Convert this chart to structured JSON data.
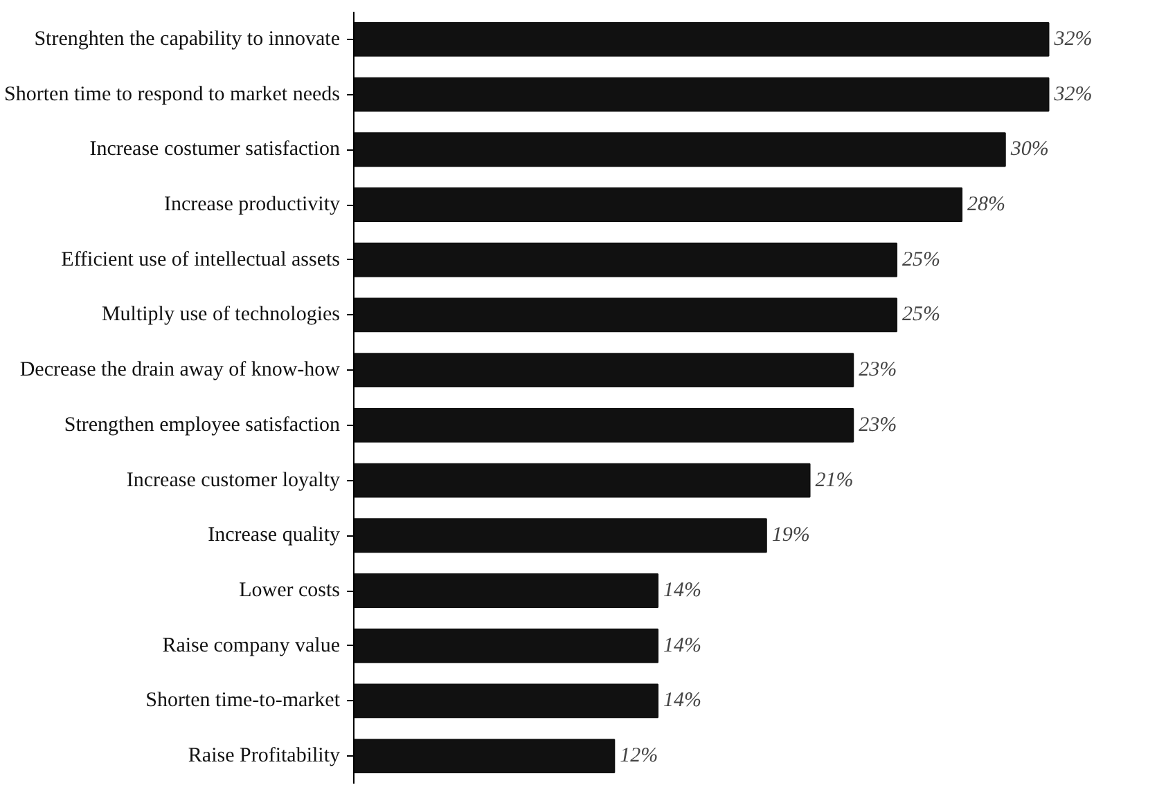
{
  "chart_data": {
    "type": "bar",
    "orientation": "horizontal",
    "categories": [
      "Strenghten the capability to innovate",
      "Shorten time to respond to market needs",
      "Increase costumer satisfaction",
      "Increase productivity",
      "Efficient use of intellectual assets",
      "Multiply use of technologies",
      "Decrease the drain away of know-how",
      "Strengthen employee satisfaction",
      "Increase customer loyalty",
      "Increase quality",
      "Lower costs",
      "Raise company value",
      "Shorten time-to-market",
      "Raise Profitability"
    ],
    "values": [
      32,
      32,
      30,
      28,
      25,
      25,
      23,
      23,
      21,
      19,
      14,
      14,
      14,
      12
    ],
    "value_labels": [
      "32%",
      "32%",
      "30%",
      "28%",
      "25%",
      "25%",
      "23%",
      "23%",
      "21%",
      "19%",
      "14%",
      "14%",
      "14%",
      "12%"
    ],
    "color": "#111111",
    "grid": false
  }
}
